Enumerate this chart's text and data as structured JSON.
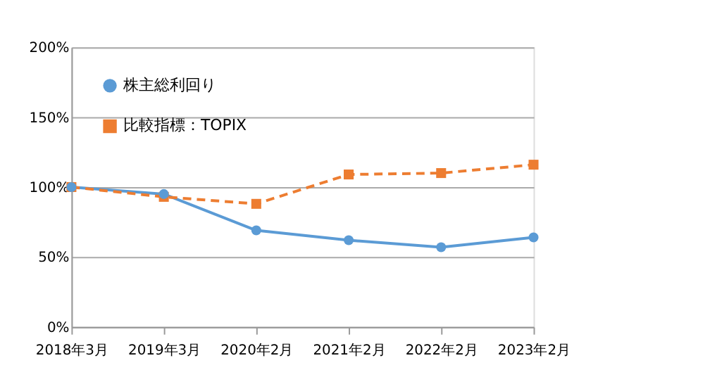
{
  "chart_data": {
    "type": "line",
    "categories": [
      "2018年3月",
      "2019年3月",
      "2020年2月",
      "2021年2月",
      "2022年2月",
      "2023年2月"
    ],
    "series": [
      {
        "name": "株主総利回り",
        "color": "#5b9bd5",
        "marker": "circle",
        "line_style": "solid",
        "values": [
          100,
          95,
          69,
          62,
          57,
          64
        ]
      },
      {
        "name": "比較指標：TOPIX",
        "color": "#ed7d31",
        "marker": "square",
        "line_style": "dashed",
        "values": [
          100,
          93,
          88,
          109,
          110,
          116
        ]
      }
    ],
    "ylim": [
      0,
      200
    ],
    "yticks": [
      {
        "value": 0,
        "label": "0%"
      },
      {
        "value": 50,
        "label": "50%"
      },
      {
        "value": 100,
        "label": "100%"
      },
      {
        "value": 150,
        "label": "150%"
      },
      {
        "value": 200,
        "label": "200%"
      }
    ],
    "grid": "y",
    "legend": "top left"
  }
}
